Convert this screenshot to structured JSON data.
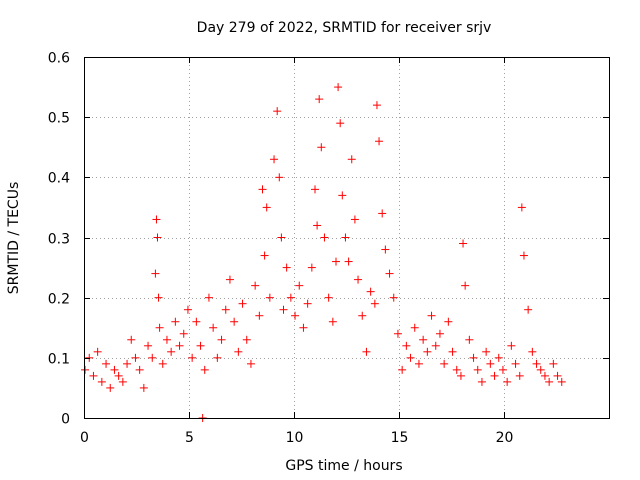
{
  "chart_data": {
    "type": "scatter",
    "title": "Day 279 of 2022, SRMTID for receiver srjv",
    "xlabel": "GPS time / hours",
    "ylabel": "SRMTID / TECUs",
    "xlim": [
      0,
      25
    ],
    "ylim": [
      0,
      0.6
    ],
    "xticks": [
      0,
      5,
      10,
      15,
      20
    ],
    "xtick_labels": [
      "0",
      "5",
      "10",
      "15",
      "20"
    ],
    "yticks": [
      0,
      0.1,
      0.2,
      0.3,
      0.4,
      0.5,
      0.6
    ],
    "ytick_labels": [
      "0",
      "0.1",
      "0.2",
      "0.3",
      "0.4",
      "0.5",
      "0.6"
    ],
    "grid": true,
    "marker": "plus",
    "color": "#ff0000",
    "series": [
      {
        "name": "SRMTID",
        "x": [
          0.05,
          0.25,
          0.45,
          0.65,
          0.85,
          1.05,
          1.25,
          1.45,
          1.65,
          1.85,
          2.05,
          2.25,
          2.45,
          2.65,
          2.85,
          3.05,
          3.25,
          3.4,
          3.45,
          3.5,
          3.55,
          3.6,
          3.75,
          3.95,
          4.15,
          4.35,
          4.55,
          4.75,
          4.95,
          5.15,
          5.35,
          5.55,
          5.65,
          5.75,
          5.95,
          6.15,
          6.35,
          6.55,
          6.75,
          6.95,
          7.15,
          7.35,
          7.55,
          7.75,
          7.95,
          8.15,
          8.35,
          8.5,
          8.6,
          8.7,
          8.85,
          9.05,
          9.2,
          9.3,
          9.4,
          9.5,
          9.65,
          9.85,
          10.05,
          10.25,
          10.45,
          10.65,
          10.85,
          11.0,
          11.1,
          11.2,
          11.3,
          11.45,
          11.65,
          11.85,
          12.0,
          12.1,
          12.2,
          12.3,
          12.45,
          12.6,
          12.75,
          12.9,
          13.05,
          13.25,
          13.45,
          13.65,
          13.85,
          13.95,
          14.05,
          14.2,
          14.35,
          14.55,
          14.75,
          14.95,
          15.15,
          15.35,
          15.55,
          15.75,
          15.95,
          16.15,
          16.35,
          16.55,
          16.75,
          16.95,
          17.15,
          17.35,
          17.55,
          17.75,
          17.95,
          18.05,
          18.15,
          18.35,
          18.55,
          18.75,
          18.95,
          19.15,
          19.35,
          19.55,
          19.75,
          19.95,
          20.15,
          20.35,
          20.55,
          20.75,
          20.85,
          20.95,
          21.15,
          21.35,
          21.55,
          21.75,
          21.95,
          22.15,
          22.35,
          22.55,
          22.75
        ],
        "y": [
          0.08,
          0.1,
          0.07,
          0.11,
          0.06,
          0.09,
          0.05,
          0.08,
          0.07,
          0.06,
          0.09,
          0.13,
          0.1,
          0.08,
          0.05,
          0.12,
          0.1,
          0.24,
          0.33,
          0.3,
          0.2,
          0.15,
          0.09,
          0.13,
          0.11,
          0.16,
          0.12,
          0.14,
          0.18,
          0.1,
          0.16,
          0.12,
          0.0,
          0.08,
          0.2,
          0.15,
          0.1,
          0.13,
          0.18,
          0.23,
          0.16,
          0.11,
          0.19,
          0.13,
          0.09,
          0.22,
          0.17,
          0.38,
          0.27,
          0.35,
          0.2,
          0.43,
          0.51,
          0.4,
          0.3,
          0.18,
          0.25,
          0.2,
          0.17,
          0.22,
          0.15,
          0.19,
          0.25,
          0.38,
          0.32,
          0.53,
          0.45,
          0.3,
          0.2,
          0.16,
          0.26,
          0.55,
          0.49,
          0.37,
          0.3,
          0.26,
          0.43,
          0.33,
          0.23,
          0.17,
          0.11,
          0.21,
          0.19,
          0.52,
          0.46,
          0.34,
          0.28,
          0.24,
          0.2,
          0.14,
          0.08,
          0.12,
          0.1,
          0.15,
          0.09,
          0.13,
          0.11,
          0.17,
          0.12,
          0.14,
          0.09,
          0.16,
          0.11,
          0.08,
          0.07,
          0.29,
          0.22,
          0.13,
          0.1,
          0.08,
          0.06,
          0.11,
          0.09,
          0.07,
          0.1,
          0.08,
          0.06,
          0.12,
          0.09,
          0.07,
          0.35,
          0.27,
          0.18,
          0.11,
          0.09,
          0.08,
          0.07,
          0.06,
          0.09,
          0.07,
          0.06
        ]
      }
    ]
  }
}
